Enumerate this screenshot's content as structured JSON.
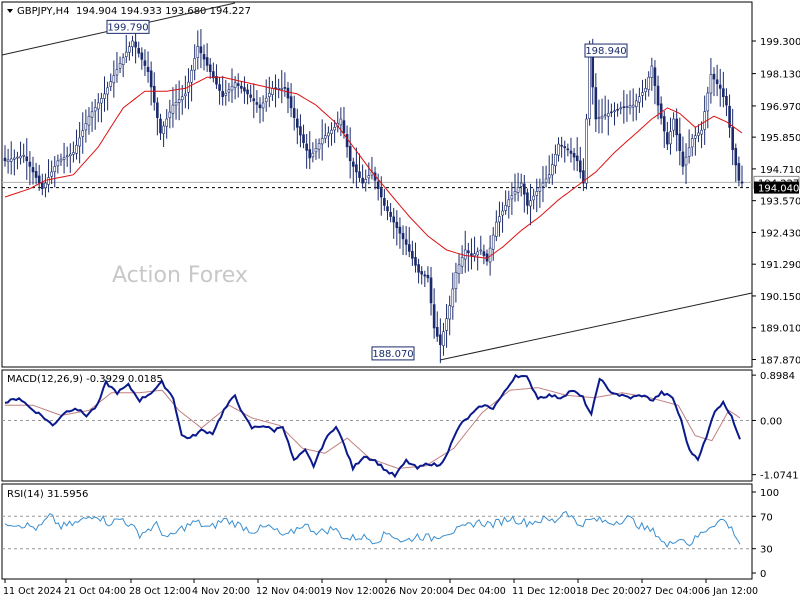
{
  "header": {
    "symbol": "GBPJPY,H4",
    "ohlc": "194.904 194.933 193.680 194.227"
  },
  "watermark": "Action Forex",
  "price_panel": {
    "y_ticks": [
      "199.300",
      "198.130",
      "196.970",
      "195.850",
      "194.710",
      "193.570",
      "192.430",
      "191.290",
      "190.150",
      "189.010",
      "187.870"
    ],
    "current_price": "194.040",
    "current_price_partial": "194.227",
    "price_labels": [
      {
        "text": "199.790",
        "value": 199.79
      },
      {
        "text": "198.940",
        "value": 198.94
      },
      {
        "text": "188.070",
        "value": 188.07
      }
    ]
  },
  "macd_panel": {
    "title": "MACD(12,26,9) -0.3929 0.0185",
    "y_ticks": [
      "0.8984",
      "0.00",
      "-1.0741"
    ]
  },
  "rsi_panel": {
    "title": "RSI(14) 31.5956",
    "y_ticks": [
      "100",
      "70",
      "30",
      "0"
    ]
  },
  "x_axis": {
    "labels": [
      "11 Oct 2024",
      "21 Oct 04:00",
      "28 Oct 12:00",
      "4 Nov 20:00",
      "12 Nov 04:00",
      "19 Nov 12:00",
      "26 Nov 20:00",
      "4 Dec 04:00",
      "11 Dec 12:00",
      "18 Dec 20:00",
      "27 Dec 04:00",
      "6 Jan 12:00"
    ]
  },
  "colors": {
    "candles": "#1a2a6c",
    "ma": "#dd1111",
    "macd_line": "#0a1a8c",
    "macd_signal": "#c08080",
    "rsi": "#3a8fd0",
    "channel": "#222222",
    "grid_dash": "#999999"
  },
  "chart_data": [
    {
      "type": "line",
      "subtype": "candlestick",
      "title": "GBPJPY,H4",
      "indicators": [
        "moving-average"
      ],
      "ylim": [
        187.6,
        200.7
      ],
      "trendlines": [
        {
          "name": "upper-channel"
        },
        {
          "name": "lower-channel"
        }
      ],
      "horizontal_lines": [
        194.227,
        194.04
      ],
      "x_labels": [
        "11 Oct 2024",
        "21 Oct 04:00",
        "28 Oct 12:00",
        "4 Nov 20:00",
        "12 Nov 04:00",
        "19 Nov 12:00",
        "26 Nov 20:00",
        "4 Dec 04:00",
        "11 Dec 12:00",
        "18 Dec 20:00",
        "27 Dec 04:00",
        "6 Jan 12:00"
      ],
      "close_anchors": [
        [
          0,
          195.0
        ],
        [
          6,
          195.2
        ],
        [
          12,
          194.0
        ],
        [
          17,
          195.0
        ],
        [
          22,
          195.3
        ],
        [
          27,
          196.6
        ],
        [
          32,
          197.4
        ],
        [
          37,
          198.5
        ],
        [
          41,
          199.3
        ],
        [
          46,
          198.2
        ],
        [
          50,
          196.0
        ],
        [
          54,
          197.0
        ],
        [
          58,
          197.4
        ],
        [
          62,
          199.1
        ],
        [
          66,
          198.2
        ],
        [
          70,
          197.3
        ],
        [
          74,
          197.8
        ],
        [
          78,
          197.4
        ],
        [
          82,
          196.9
        ],
        [
          86,
          197.6
        ],
        [
          90,
          197.6
        ],
        [
          94,
          196.2
        ],
        [
          98,
          195.1
        ],
        [
          102,
          195.8
        ],
        [
          106,
          196.2
        ],
        [
          108,
          196.5
        ],
        [
          111,
          195.0
        ],
        [
          115,
          194.2
        ],
        [
          118,
          194.6
        ],
        [
          122,
          193.4
        ],
        [
          126,
          192.6
        ],
        [
          129,
          192.0
        ],
        [
          133,
          191.0
        ],
        [
          136,
          190.8
        ],
        [
          138,
          189.0
        ],
        [
          140,
          188.4
        ],
        [
          143,
          189.8
        ],
        [
          145,
          191.0
        ],
        [
          148,
          191.8
        ],
        [
          150,
          191.6
        ],
        [
          153,
          191.8
        ],
        [
          155,
          191.4
        ],
        [
          158,
          192.8
        ],
        [
          162,
          193.6
        ],
        [
          166,
          194.2
        ],
        [
          168,
          193.4
        ],
        [
          171,
          193.9
        ],
        [
          175,
          194.5
        ],
        [
          178,
          195.6
        ],
        [
          181,
          195.4
        ],
        [
          184,
          195.0
        ],
        [
          186,
          194.2
        ],
        [
          188,
          198.8
        ],
        [
          190,
          196.5
        ],
        [
          194,
          196.7
        ],
        [
          198,
          196.9
        ],
        [
          202,
          197.0
        ],
        [
          206,
          197.6
        ],
        [
          208,
          198.4
        ],
        [
          210,
          197.0
        ],
        [
          213,
          195.6
        ],
        [
          215,
          196.5
        ],
        [
          218,
          194.8
        ],
        [
          221,
          195.8
        ],
        [
          224,
          196.1
        ],
        [
          227,
          198.1
        ],
        [
          230,
          197.6
        ],
        [
          232,
          197.0
        ],
        [
          234,
          195.4
        ],
        [
          236,
          194.3
        ],
        [
          237,
          194.2
        ]
      ],
      "ma_anchors": [
        [
          0,
          193.7
        ],
        [
          8,
          194.0
        ],
        [
          13,
          194.3
        ],
        [
          22,
          194.5
        ],
        [
          30,
          195.5
        ],
        [
          38,
          196.9
        ],
        [
          45,
          197.5
        ],
        [
          52,
          197.5
        ],
        [
          58,
          197.6
        ],
        [
          65,
          198.0
        ],
        [
          70,
          198.0
        ],
        [
          78,
          197.8
        ],
        [
          86,
          197.6
        ],
        [
          94,
          197.4
        ],
        [
          100,
          197.0
        ],
        [
          106,
          196.4
        ],
        [
          112,
          195.5
        ],
        [
          118,
          194.6
        ],
        [
          124,
          193.8
        ],
        [
          130,
          193.0
        ],
        [
          136,
          192.3
        ],
        [
          142,
          191.8
        ],
        [
          148,
          191.6
        ],
        [
          155,
          191.5
        ],
        [
          160,
          191.9
        ],
        [
          166,
          192.5
        ],
        [
          172,
          193.0
        ],
        [
          178,
          193.6
        ],
        [
          184,
          194.1
        ],
        [
          190,
          194.6
        ],
        [
          196,
          195.3
        ],
        [
          202,
          195.9
        ],
        [
          208,
          196.5
        ],
        [
          213,
          196.9
        ],
        [
          217,
          196.7
        ],
        [
          222,
          196.2
        ],
        [
          228,
          196.6
        ],
        [
          232,
          196.4
        ],
        [
          237,
          196.0
        ]
      ]
    },
    {
      "type": "line",
      "title": "MACD(12,26,9) -0.3929 0.0185",
      "ylim": [
        -1.2,
        1.0
      ],
      "series": [
        {
          "name": "MACD(12,26,9)"
        }
      ],
      "macd_anchors": [
        [
          0,
          0.35
        ],
        [
          5,
          0.45
        ],
        [
          9,
          0.25
        ],
        [
          13,
          0.1
        ],
        [
          17,
          -0.1
        ],
        [
          21,
          0.15
        ],
        [
          25,
          0.25
        ],
        [
          29,
          0.1
        ],
        [
          33,
          0.3
        ],
        [
          36,
          0.75
        ],
        [
          40,
          0.55
        ],
        [
          44,
          0.7
        ],
        [
          48,
          0.4
        ],
        [
          52,
          0.55
        ],
        [
          56,
          0.75
        ],
        [
          60,
          0.45
        ],
        [
          63,
          -0.3
        ],
        [
          66,
          -0.35
        ],
        [
          70,
          -0.2
        ],
        [
          74,
          -0.25
        ],
        [
          78,
          0.2
        ],
        [
          82,
          0.5
        ],
        [
          85,
          0.1
        ],
        [
          88,
          -0.15
        ],
        [
          92,
          -0.1
        ],
        [
          96,
          -0.2
        ],
        [
          99,
          -0.1
        ],
        [
          103,
          -0.8
        ],
        [
          107,
          -0.6
        ],
        [
          110,
          -0.9
        ],
        [
          114,
          -0.4
        ],
        [
          118,
          -0.1
        ],
        [
          121,
          -0.5
        ],
        [
          124,
          -0.95
        ],
        [
          128,
          -0.7
        ],
        [
          132,
          -0.8
        ],
        [
          136,
          -1.0
        ],
        [
          139,
          -1.1
        ],
        [
          143,
          -0.8
        ],
        [
          147,
          -0.95
        ],
        [
          151,
          -0.85
        ],
        [
          155,
          -0.9
        ],
        [
          158,
          -0.6
        ],
        [
          162,
          -0.1
        ],
        [
          166,
          0.1
        ],
        [
          170,
          0.3
        ],
        [
          174,
          0.25
        ],
        [
          178,
          0.55
        ],
        [
          182,
          0.9
        ],
        [
          186,
          0.85
        ],
        [
          190,
          0.45
        ],
        [
          194,
          0.5
        ],
        [
          198,
          0.45
        ],
        [
          202,
          0.6
        ],
        [
          206,
          0.45
        ],
        [
          209,
          0.1
        ],
        [
          212,
          0.85
        ],
        [
          215,
          0.6
        ],
        [
          219,
          0.5
        ],
        [
          223,
          0.45
        ],
        [
          227,
          0.5
        ],
        [
          231,
          0.4
        ],
        [
          234,
          0.55
        ],
        [
          238,
          0.45
        ],
        [
          241,
          0.0
        ],
        [
          244,
          -0.6
        ],
        [
          247,
          -0.75
        ],
        [
          250,
          -0.35
        ],
        [
          253,
          0.2
        ],
        [
          256,
          0.35
        ],
        [
          259,
          0.1
        ],
        [
          262,
          -0.4
        ]
      ],
      "signal_anchors": [
        [
          0,
          0.3
        ],
        [
          10,
          0.3
        ],
        [
          20,
          0.1
        ],
        [
          30,
          0.2
        ],
        [
          38,
          0.55
        ],
        [
          48,
          0.55
        ],
        [
          56,
          0.6
        ],
        [
          62,
          0.2
        ],
        [
          70,
          -0.15
        ],
        [
          80,
          0.3
        ],
        [
          88,
          0.05
        ],
        [
          98,
          -0.1
        ],
        [
          106,
          -0.55
        ],
        [
          114,
          -0.65
        ],
        [
          122,
          -0.35
        ],
        [
          130,
          -0.75
        ],
        [
          140,
          -0.95
        ],
        [
          150,
          -0.9
        ],
        [
          160,
          -0.55
        ],
        [
          170,
          0.15
        ],
        [
          180,
          0.6
        ],
        [
          190,
          0.65
        ],
        [
          200,
          0.5
        ],
        [
          210,
          0.45
        ],
        [
          220,
          0.55
        ],
        [
          230,
          0.45
        ],
        [
          240,
          0.3
        ],
        [
          246,
          -0.3
        ],
        [
          252,
          -0.4
        ],
        [
          258,
          0.2
        ],
        [
          262,
          0.05
        ]
      ]
    },
    {
      "type": "line",
      "title": "RSI(14) 31.5956",
      "ylim": [
        0,
        100
      ],
      "series": [
        {
          "name": "RSI(14)"
        }
      ],
      "rsi_anchors": [
        [
          0,
          63
        ],
        [
          6,
          60
        ],
        [
          12,
          55
        ],
        [
          16,
          70
        ],
        [
          20,
          57
        ],
        [
          26,
          62
        ],
        [
          32,
          73
        ],
        [
          37,
          62
        ],
        [
          42,
          67
        ],
        [
          48,
          48
        ],
        [
          54,
          59
        ],
        [
          58,
          42
        ],
        [
          63,
          55
        ],
        [
          68,
          63
        ],
        [
          73,
          55
        ],
        [
          78,
          66
        ],
        [
          83,
          60
        ],
        [
          88,
          52
        ],
        [
          94,
          57
        ],
        [
          100,
          44
        ],
        [
          106,
          60
        ],
        [
          112,
          50
        ],
        [
          117,
          55
        ],
        [
          122,
          42
        ],
        [
          127,
          45
        ],
        [
          132,
          40
        ],
        [
          137,
          50
        ],
        [
          142,
          38
        ],
        [
          147,
          46
        ],
        [
          152,
          43
        ],
        [
          157,
          50
        ],
        [
          162,
          53
        ],
        [
          168,
          63
        ],
        [
          174,
          60
        ],
        [
          180,
          68
        ],
        [
          186,
          62
        ],
        [
          192,
          66
        ],
        [
          196,
          64
        ],
        [
          200,
          78
        ],
        [
          204,
          60
        ],
        [
          210,
          66
        ],
        [
          216,
          62
        ],
        [
          222,
          68
        ],
        [
          228,
          55
        ],
        [
          232,
          50
        ],
        [
          236,
          32
        ],
        [
          240,
          45
        ],
        [
          244,
          36
        ],
        [
          248,
          48
        ],
        [
          252,
          60
        ],
        [
          256,
          66
        ],
        [
          260,
          50
        ],
        [
          262,
          36
        ]
      ]
    }
  ]
}
